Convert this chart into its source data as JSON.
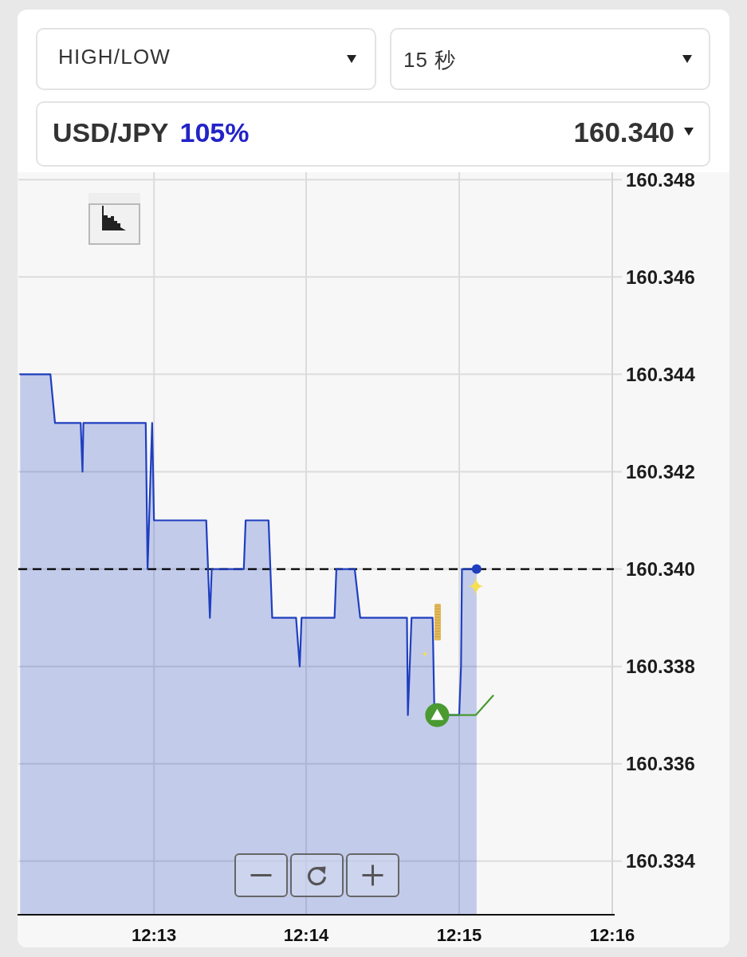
{
  "chart_data": {
    "type": "area",
    "title": "USD/JPY",
    "annotations": [
      "HIGH/LOW",
      "15 秒",
      "105%",
      "160.340"
    ],
    "x": [
      12.2021,
      12.2054,
      12.2059,
      12.2087,
      12.2089,
      12.209,
      12.2158,
      12.216,
      12.2165,
      12.2167,
      12.2224,
      12.2228,
      12.223,
      12.2265,
      12.2267,
      12.2292,
      12.2296,
      12.2322,
      12.2326,
      12.2328,
      12.2364,
      12.2366,
      12.2386,
      12.2392,
      12.2443,
      12.2444,
      12.2448,
      12.2471,
      12.2473,
      12.25,
      12.2502,
      12.2503,
      12.2519
    ],
    "series": [
      {
        "color": "#1f3fbf",
        "values": [
          160.344,
          160.344,
          160.343,
          160.343,
          160.342,
          160.343,
          160.343,
          160.34,
          160.343,
          160.341,
          160.341,
          160.339,
          160.34,
          160.34,
          160.341,
          160.341,
          160.339,
          160.339,
          160.338,
          160.339,
          160.339,
          160.34,
          160.34,
          160.339,
          160.339,
          160.337,
          160.339,
          160.339,
          160.337,
          160.337,
          160.338,
          160.34,
          160.34
        ]
      },
      {
        "type": "line",
        "color": "#4a9a31",
        "x": [
          12.2476,
          12.2518,
          12.2537
        ],
        "values": [
          160.337,
          160.337,
          160.3374
        ]
      },
      {
        "type": "scatter",
        "color": "#4a9a31",
        "x": [
          12.2476
        ],
        "values": [
          160.337
        ]
      },
      {
        "type": "scatter",
        "color": "#1f3fbf",
        "x": [
          12.2519
        ],
        "values": [
          160.34
        ]
      }
    ],
    "xlim": [
      12.2019,
      12.2667
    ],
    "xticks": [
      {
        "value": 12.2167,
        "label": "12:13"
      },
      {
        "value": 12.2333,
        "label": "12:14"
      },
      {
        "value": 12.25,
        "label": "12:15"
      },
      {
        "value": 12.2667,
        "label": "12:16"
      }
    ],
    "ylim": [
      160.3329,
      160.34815
    ],
    "yticks": [
      160.334,
      160.336,
      160.338,
      {
        "value": 160.34,
        "label": "160.340"
      },
      160.342,
      160.344,
      160.346,
      160.348
    ],
    "ref_lines": [
      {
        "axis": "y",
        "value": 160.34,
        "color": "#000000",
        "line_style": "dashed"
      }
    ],
    "grid": true,
    "line_style": "solid"
  }
}
